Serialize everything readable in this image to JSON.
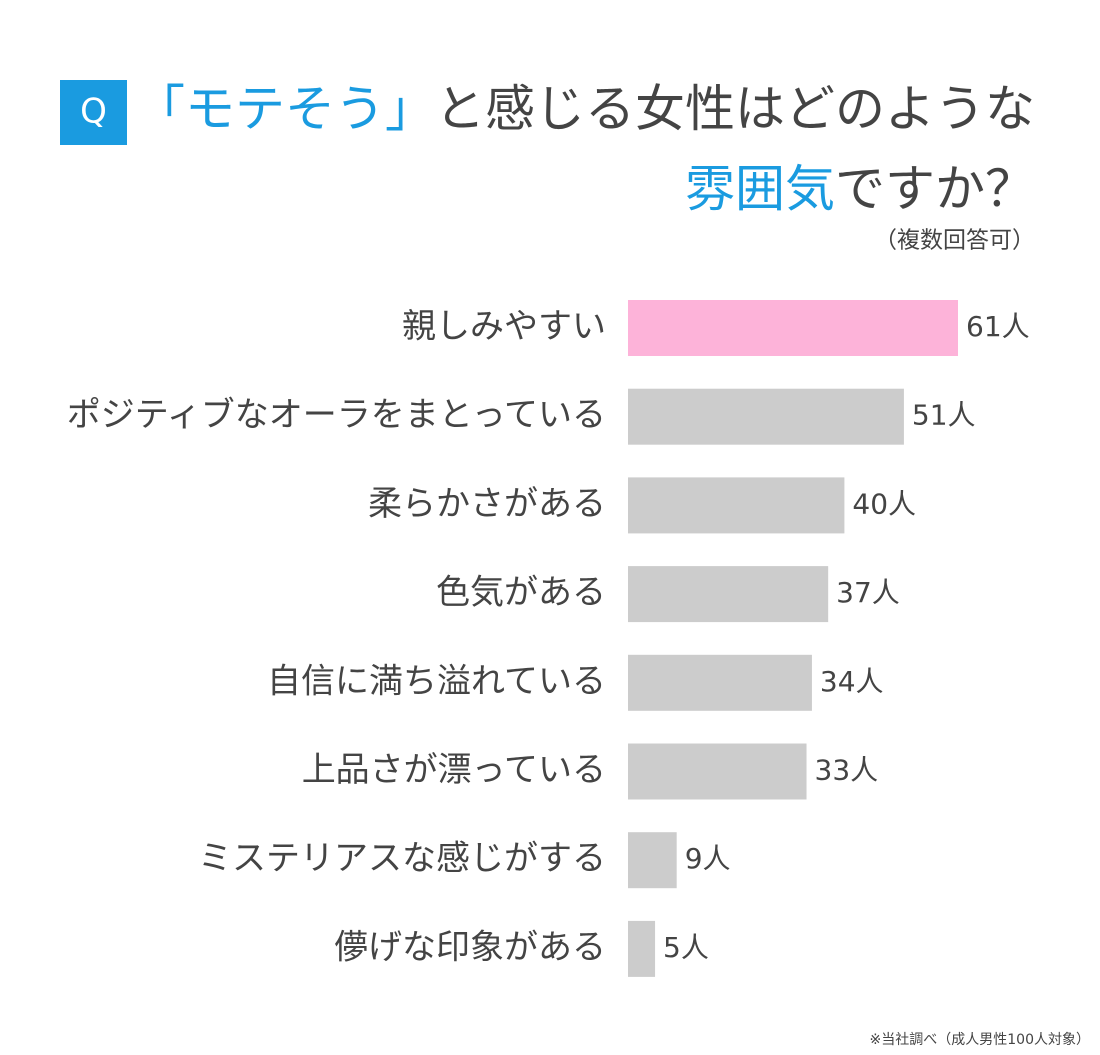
{
  "chart_data": {
    "type": "bar",
    "question_badge": "Q",
    "title_lines": [
      [
        {
          "text": "「モテそう」",
          "color": "#1a9be0"
        },
        {
          "text": "と感じる女性はどのような",
          "color": "#444444"
        }
      ],
      [
        {
          "text": "雰囲気",
          "color": "#1a9be0"
        },
        {
          "text": "ですか？",
          "color": "#444444"
        }
      ]
    ],
    "subtitle": "（複数回答可）",
    "categories": [
      "親しみやすい",
      "ポジティブなオーラをまとっている",
      "柔らかさがある",
      "色気がある",
      "自信に満ち溢れている",
      "上品さが漂っている",
      "ミステリアスな感じがする",
      "儚げな印象がある"
    ],
    "values": [
      61,
      51,
      40,
      37,
      34,
      33,
      9,
      5
    ],
    "value_labels": [
      "61人",
      "51人",
      "40人",
      "37人",
      "34人",
      "33人",
      "9人",
      "5人"
    ],
    "colors": [
      "#fdb3d9",
      "#cccccc",
      "#cccccc",
      "#cccccc",
      "#cccccc",
      "#cccccc",
      "#cccccc",
      "#cccccc"
    ],
    "note": "※当社調べ（成人男性100人対象）"
  }
}
